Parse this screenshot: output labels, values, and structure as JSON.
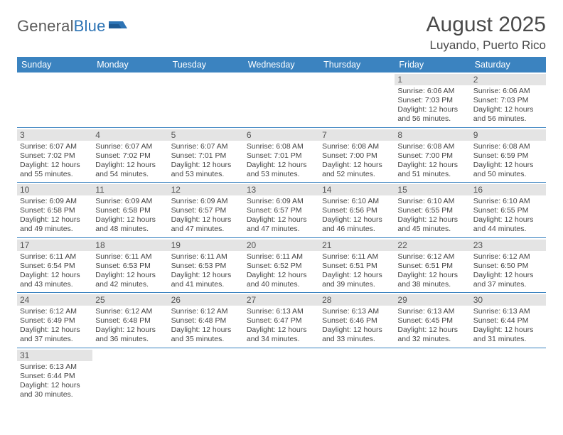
{
  "brand": {
    "name1": "General",
    "name2": "Blue"
  },
  "title": "August 2025",
  "location": "Luyando, Puerto Rico",
  "colors": {
    "header_bg": "#3b83c0",
    "header_text": "#ffffff",
    "daynum_bg": "#e4e4e4",
    "daynum_text": "#555555",
    "cell_border": "#3b83c0",
    "body_text": "#444444",
    "title_text": "#4a4a4a",
    "brand_gray": "#5b5b5b",
    "brand_blue": "#2d74b5",
    "background": "#ffffff"
  },
  "typography": {
    "title_fontsize": 30,
    "location_fontsize": 17,
    "header_fontsize": 12.5,
    "daynum_fontsize": 12,
    "cell_fontsize": 10.5,
    "logo_fontsize": 22
  },
  "days_of_week": [
    "Sunday",
    "Monday",
    "Tuesday",
    "Wednesday",
    "Thursday",
    "Friday",
    "Saturday"
  ],
  "weeks": [
    [
      null,
      null,
      null,
      null,
      null,
      {
        "n": "1",
        "sunrise": "Sunrise: 6:06 AM",
        "sunset": "Sunset: 7:03 PM",
        "day1": "Daylight: 12 hours",
        "day2": "and 56 minutes."
      },
      {
        "n": "2",
        "sunrise": "Sunrise: 6:06 AM",
        "sunset": "Sunset: 7:03 PM",
        "day1": "Daylight: 12 hours",
        "day2": "and 56 minutes."
      }
    ],
    [
      {
        "n": "3",
        "sunrise": "Sunrise: 6:07 AM",
        "sunset": "Sunset: 7:02 PM",
        "day1": "Daylight: 12 hours",
        "day2": "and 55 minutes."
      },
      {
        "n": "4",
        "sunrise": "Sunrise: 6:07 AM",
        "sunset": "Sunset: 7:02 PM",
        "day1": "Daylight: 12 hours",
        "day2": "and 54 minutes."
      },
      {
        "n": "5",
        "sunrise": "Sunrise: 6:07 AM",
        "sunset": "Sunset: 7:01 PM",
        "day1": "Daylight: 12 hours",
        "day2": "and 53 minutes."
      },
      {
        "n": "6",
        "sunrise": "Sunrise: 6:08 AM",
        "sunset": "Sunset: 7:01 PM",
        "day1": "Daylight: 12 hours",
        "day2": "and 53 minutes."
      },
      {
        "n": "7",
        "sunrise": "Sunrise: 6:08 AM",
        "sunset": "Sunset: 7:00 PM",
        "day1": "Daylight: 12 hours",
        "day2": "and 52 minutes."
      },
      {
        "n": "8",
        "sunrise": "Sunrise: 6:08 AM",
        "sunset": "Sunset: 7:00 PM",
        "day1": "Daylight: 12 hours",
        "day2": "and 51 minutes."
      },
      {
        "n": "9",
        "sunrise": "Sunrise: 6:08 AM",
        "sunset": "Sunset: 6:59 PM",
        "day1": "Daylight: 12 hours",
        "day2": "and 50 minutes."
      }
    ],
    [
      {
        "n": "10",
        "sunrise": "Sunrise: 6:09 AM",
        "sunset": "Sunset: 6:58 PM",
        "day1": "Daylight: 12 hours",
        "day2": "and 49 minutes."
      },
      {
        "n": "11",
        "sunrise": "Sunrise: 6:09 AM",
        "sunset": "Sunset: 6:58 PM",
        "day1": "Daylight: 12 hours",
        "day2": "and 48 minutes."
      },
      {
        "n": "12",
        "sunrise": "Sunrise: 6:09 AM",
        "sunset": "Sunset: 6:57 PM",
        "day1": "Daylight: 12 hours",
        "day2": "and 47 minutes."
      },
      {
        "n": "13",
        "sunrise": "Sunrise: 6:09 AM",
        "sunset": "Sunset: 6:57 PM",
        "day1": "Daylight: 12 hours",
        "day2": "and 47 minutes."
      },
      {
        "n": "14",
        "sunrise": "Sunrise: 6:10 AM",
        "sunset": "Sunset: 6:56 PM",
        "day1": "Daylight: 12 hours",
        "day2": "and 46 minutes."
      },
      {
        "n": "15",
        "sunrise": "Sunrise: 6:10 AM",
        "sunset": "Sunset: 6:55 PM",
        "day1": "Daylight: 12 hours",
        "day2": "and 45 minutes."
      },
      {
        "n": "16",
        "sunrise": "Sunrise: 6:10 AM",
        "sunset": "Sunset: 6:55 PM",
        "day1": "Daylight: 12 hours",
        "day2": "and 44 minutes."
      }
    ],
    [
      {
        "n": "17",
        "sunrise": "Sunrise: 6:11 AM",
        "sunset": "Sunset: 6:54 PM",
        "day1": "Daylight: 12 hours",
        "day2": "and 43 minutes."
      },
      {
        "n": "18",
        "sunrise": "Sunrise: 6:11 AM",
        "sunset": "Sunset: 6:53 PM",
        "day1": "Daylight: 12 hours",
        "day2": "and 42 minutes."
      },
      {
        "n": "19",
        "sunrise": "Sunrise: 6:11 AM",
        "sunset": "Sunset: 6:53 PM",
        "day1": "Daylight: 12 hours",
        "day2": "and 41 minutes."
      },
      {
        "n": "20",
        "sunrise": "Sunrise: 6:11 AM",
        "sunset": "Sunset: 6:52 PM",
        "day1": "Daylight: 12 hours",
        "day2": "and 40 minutes."
      },
      {
        "n": "21",
        "sunrise": "Sunrise: 6:11 AM",
        "sunset": "Sunset: 6:51 PM",
        "day1": "Daylight: 12 hours",
        "day2": "and 39 minutes."
      },
      {
        "n": "22",
        "sunrise": "Sunrise: 6:12 AM",
        "sunset": "Sunset: 6:51 PM",
        "day1": "Daylight: 12 hours",
        "day2": "and 38 minutes."
      },
      {
        "n": "23",
        "sunrise": "Sunrise: 6:12 AM",
        "sunset": "Sunset: 6:50 PM",
        "day1": "Daylight: 12 hours",
        "day2": "and 37 minutes."
      }
    ],
    [
      {
        "n": "24",
        "sunrise": "Sunrise: 6:12 AM",
        "sunset": "Sunset: 6:49 PM",
        "day1": "Daylight: 12 hours",
        "day2": "and 37 minutes."
      },
      {
        "n": "25",
        "sunrise": "Sunrise: 6:12 AM",
        "sunset": "Sunset: 6:48 PM",
        "day1": "Daylight: 12 hours",
        "day2": "and 36 minutes."
      },
      {
        "n": "26",
        "sunrise": "Sunrise: 6:12 AM",
        "sunset": "Sunset: 6:48 PM",
        "day1": "Daylight: 12 hours",
        "day2": "and 35 minutes."
      },
      {
        "n": "27",
        "sunrise": "Sunrise: 6:13 AM",
        "sunset": "Sunset: 6:47 PM",
        "day1": "Daylight: 12 hours",
        "day2": "and 34 minutes."
      },
      {
        "n": "28",
        "sunrise": "Sunrise: 6:13 AM",
        "sunset": "Sunset: 6:46 PM",
        "day1": "Daylight: 12 hours",
        "day2": "and 33 minutes."
      },
      {
        "n": "29",
        "sunrise": "Sunrise: 6:13 AM",
        "sunset": "Sunset: 6:45 PM",
        "day1": "Daylight: 12 hours",
        "day2": "and 32 minutes."
      },
      {
        "n": "30",
        "sunrise": "Sunrise: 6:13 AM",
        "sunset": "Sunset: 6:44 PM",
        "day1": "Daylight: 12 hours",
        "day2": "and 31 minutes."
      }
    ],
    [
      {
        "n": "31",
        "sunrise": "Sunrise: 6:13 AM",
        "sunset": "Sunset: 6:44 PM",
        "day1": "Daylight: 12 hours",
        "day2": "and 30 minutes."
      },
      null,
      null,
      null,
      null,
      null,
      null
    ]
  ]
}
